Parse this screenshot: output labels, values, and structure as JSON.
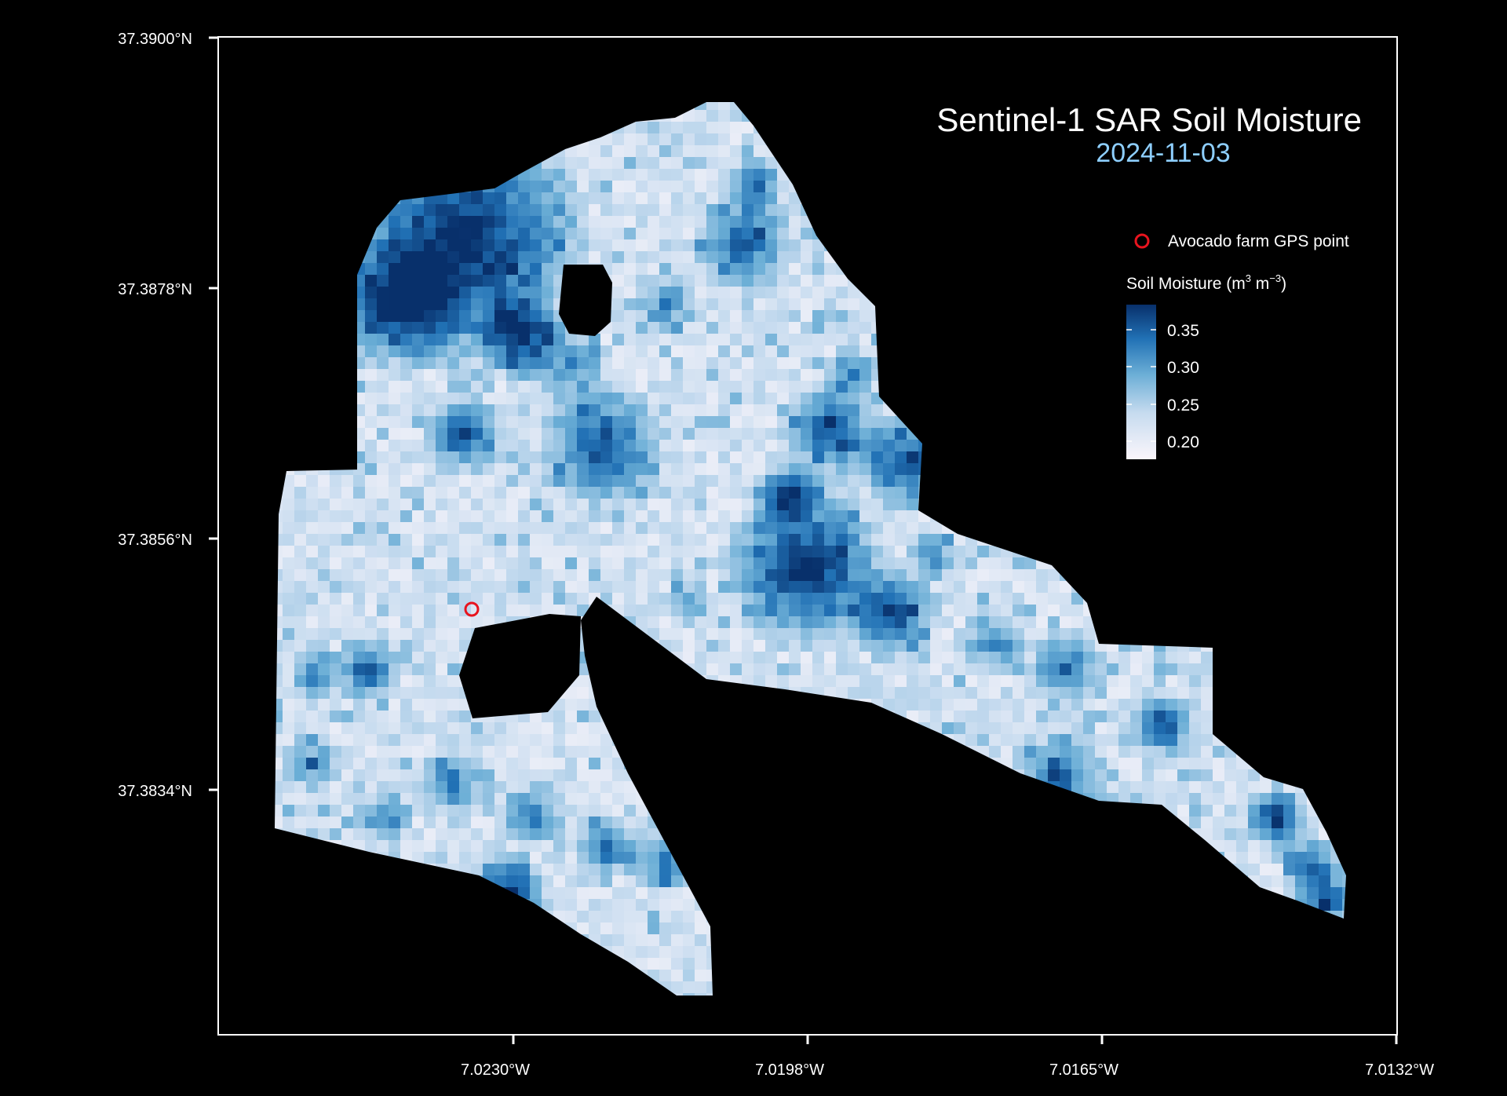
{
  "map": {
    "title": "Sentinel-1 SAR Soil Moisture",
    "subtitle": "2024-11-03",
    "subtitle_color": "#8ecfff",
    "background_color": "#000000",
    "frame_color": "#ffffff",
    "y_ticks": [
      "37.3900°N",
      "37.3878°N",
      "37.3856°N",
      "37.3834°N"
    ],
    "x_ticks": [
      "7.0230°W",
      "7.0198°W",
      "7.0165°W",
      "7.0132°W"
    ],
    "marker": {
      "label": "Avocado farm GPS point",
      "color": "#e8141e",
      "lat": "37.3850",
      "lon": "-7.0234"
    },
    "legend": {
      "title": "Soil Moisture (m",
      "title_sup1": "3",
      "title_mid": " m",
      "title_sup2": "−3",
      "title_end": ")",
      "ticks": [
        "0.35",
        "0.30",
        "0.25",
        "0.20"
      ],
      "gradient_colors": [
        "#08306b",
        "#2171b5",
        "#6baed6",
        "#c6dbef",
        "#fbf6fb"
      ]
    }
  }
}
